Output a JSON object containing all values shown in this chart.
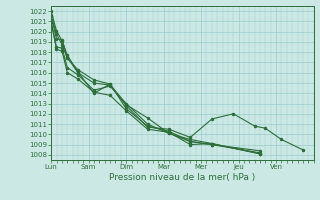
{
  "title": "",
  "xlabel": "Pression niveau de la mer( hPa )",
  "ylabel": "",
  "ylim": [
    1007.5,
    1022.5
  ],
  "yticks": [
    1008,
    1009,
    1010,
    1011,
    1012,
    1013,
    1014,
    1015,
    1016,
    1017,
    1018,
    1019,
    1020,
    1021,
    1022
  ],
  "day_labels": [
    "Lun",
    "Sam",
    "Dim",
    "Mar",
    "Mer",
    "Jeu",
    "Ven"
  ],
  "bg_color": "#cce8e4",
  "grid_color": "#99cccc",
  "line_color": "#2d6e3a",
  "lines": [
    [
      1022.0,
      1020.1,
      1019.1,
      1017.7,
      1016.1,
      1014.0,
      1014.9,
      1012.5,
      1010.8,
      1010.3,
      1009.3,
      1009.0,
      1008.2
    ],
    [
      1021.5,
      1019.3,
      1019.2,
      1017.5,
      1016.0,
      1015.0,
      1014.8,
      1013.0,
      1011.0,
      1010.1,
      1009.5,
      1009.1,
      1008.1
    ],
    [
      1021.5,
      1019.8,
      1018.7,
      1017.4,
      1016.3,
      1015.3,
      1014.9,
      1012.8,
      1010.7,
      1010.5,
      1009.7,
      1011.5,
      1012.0,
      1010.8,
      1010.6,
      1009.5,
      1008.5
    ],
    [
      1021.0,
      1018.5,
      1018.4,
      1016.5,
      1015.8,
      1014.3,
      1014.7,
      1012.9,
      1011.6,
      1010.1,
      1009.3,
      1009.0,
      1008.4
    ],
    [
      1020.9,
      1018.3,
      1018.1,
      1016.0,
      1015.4,
      1014.1,
      1013.8,
      1012.3,
      1010.5,
      1010.2,
      1009.0,
      1009.1,
      1008.1
    ]
  ],
  "lines_x": [
    [
      0.0,
      0.14,
      0.29,
      0.43,
      0.71,
      1.14,
      1.57,
      2.0,
      2.57,
      3.14,
      3.71,
      4.29,
      5.57
    ],
    [
      0.0,
      0.14,
      0.29,
      0.43,
      0.71,
      1.14,
      1.57,
      2.0,
      2.57,
      3.14,
      3.71,
      4.29,
      5.57
    ],
    [
      0.0,
      0.14,
      0.29,
      0.43,
      0.71,
      1.14,
      1.57,
      2.0,
      2.57,
      3.14,
      3.71,
      4.29,
      4.86,
      5.43,
      5.71,
      6.14,
      6.71
    ],
    [
      0.0,
      0.14,
      0.29,
      0.43,
      0.71,
      1.14,
      1.57,
      2.0,
      2.57,
      3.14,
      3.71,
      4.29,
      5.57
    ],
    [
      0.0,
      0.14,
      0.29,
      0.43,
      0.71,
      1.14,
      1.57,
      2.0,
      2.57,
      3.14,
      3.71,
      4.29,
      5.57
    ]
  ],
  "xlim": [
    0.0,
    7.0
  ],
  "day_positions": [
    0.0,
    1.0,
    2.0,
    3.0,
    4.0,
    5.0,
    6.0
  ],
  "marker_size": 1.5,
  "line_width": 0.8,
  "tick_fontsize": 5.0,
  "label_fontsize": 6.5
}
